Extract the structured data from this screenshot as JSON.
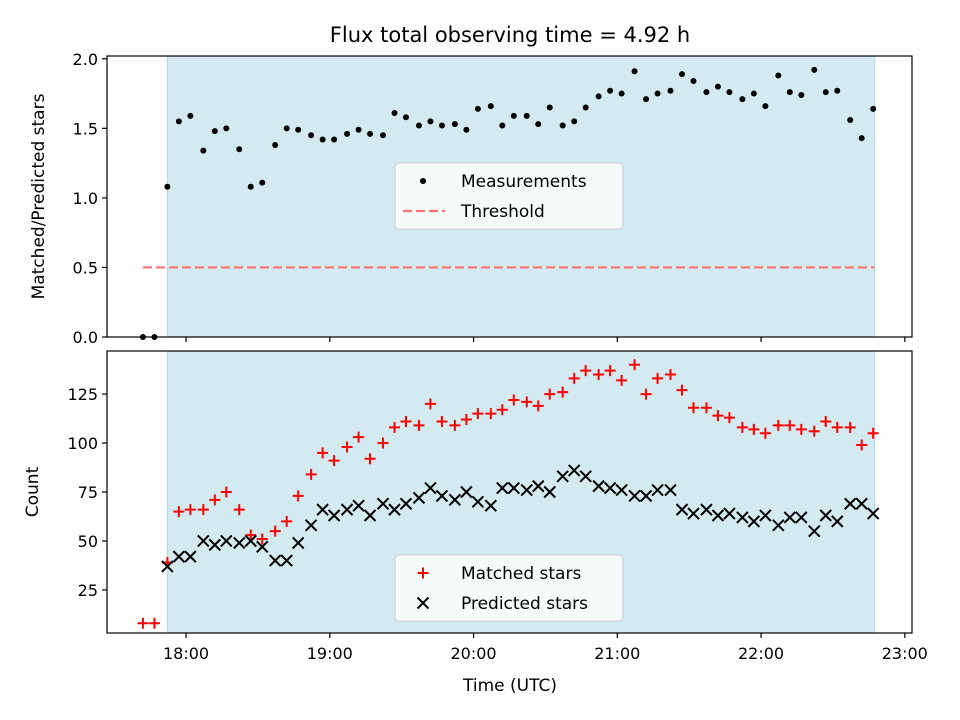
{
  "chart_data": {
    "title": "Flux total observing time = 4.92 h",
    "xlabel": "Time (UTC)",
    "x_tick_labels": [
      "18:00",
      "19:00",
      "20:00",
      "21:00",
      "22:00",
      "23:00"
    ],
    "x_ticks_hours": [
      18,
      19,
      20,
      21,
      22,
      23
    ],
    "xlim_hours": [
      17.45,
      23.05
    ],
    "shade_span_hours": [
      17.87,
      22.79
    ],
    "shade_color": "#d3eaf0",
    "panels": [
      {
        "type": "scatter",
        "ylabel": "Matched/Predicted stars",
        "ylim": [
          0,
          2.02
        ],
        "y_ticks": [
          0.0,
          0.5,
          1.0,
          1.5,
          2.0
        ],
        "y_tick_labels": [
          "0.0",
          "0.5",
          "1.0",
          "1.5",
          "2.0"
        ],
        "legend": {
          "placement": "center",
          "entries": [
            {
              "label": "Measurements",
              "marker": "dot",
              "color": "#000000"
            },
            {
              "label": "Threshold",
              "marker": "dashed-line",
              "color": "#ff7070"
            }
          ]
        },
        "threshold": {
          "value": 0.5,
          "x_range_hours": [
            17.7,
            22.79
          ],
          "color": "#ff7070"
        },
        "series": [
          {
            "marker": "dot",
            "color": "#000000",
            "x_hours": [
              17.7,
              17.78,
              17.87,
              17.95,
              18.03,
              18.12,
              18.2,
              18.28,
              18.37,
              18.45,
              18.53,
              18.62,
              18.7,
              18.78,
              18.87,
              18.95,
              19.03,
              19.12,
              19.2,
              19.28,
              19.37,
              19.45,
              19.53,
              19.62,
              19.7,
              19.78,
              19.87,
              19.95,
              20.03,
              20.12,
              20.2,
              20.28,
              20.37,
              20.45,
              20.53,
              20.62,
              20.7,
              20.78,
              20.87,
              20.95,
              21.03,
              21.12,
              21.2,
              21.28,
              21.37,
              21.45,
              21.53,
              21.62,
              21.7,
              21.78,
              21.87,
              21.95,
              22.03,
              22.12,
              22.2,
              22.28,
              22.37,
              22.45,
              22.53,
              22.62,
              22.7,
              22.78
            ],
            "y": [
              0.0,
              0.0,
              1.08,
              1.55,
              1.59,
              1.34,
              1.48,
              1.5,
              1.35,
              1.08,
              1.11,
              1.38,
              1.5,
              1.49,
              1.45,
              1.42,
              1.42,
              1.46,
              1.49,
              1.46,
              1.45,
              1.61,
              1.58,
              1.52,
              1.55,
              1.52,
              1.53,
              1.49,
              1.64,
              1.66,
              1.52,
              1.59,
              1.59,
              1.53,
              1.65,
              1.52,
              1.55,
              1.65,
              1.73,
              1.77,
              1.75,
              1.91,
              1.71,
              1.75,
              1.77,
              1.89,
              1.84,
              1.76,
              1.8,
              1.76,
              1.71,
              1.75,
              1.66,
              1.88,
              1.76,
              1.74,
              1.92,
              1.76,
              1.77,
              1.56,
              1.43,
              1.64
            ]
          }
        ]
      },
      {
        "type": "scatter",
        "ylabel": "Count",
        "ylim": [
          3,
          147
        ],
        "y_ticks": [
          25,
          50,
          75,
          100,
          125
        ],
        "y_tick_labels": [
          "25",
          "50",
          "75",
          "100",
          "125"
        ],
        "legend": {
          "placement": "lower center",
          "entries": [
            {
              "label": "Matched stars",
              "marker": "plus",
              "color": "#ff0000"
            },
            {
              "label": "Predicted stars",
              "marker": "x",
              "color": "#000000"
            }
          ]
        },
        "series": [
          {
            "name": "Matched stars",
            "marker": "plus",
            "color": "#ff0000",
            "x_hours": [
              17.7,
              17.78,
              17.87,
              17.95,
              18.03,
              18.12,
              18.2,
              18.28,
              18.37,
              18.45,
              18.53,
              18.62,
              18.7,
              18.78,
              18.87,
              18.95,
              19.03,
              19.12,
              19.2,
              19.28,
              19.37,
              19.45,
              19.53,
              19.62,
              19.7,
              19.78,
              19.87,
              19.95,
              20.03,
              20.12,
              20.2,
              20.28,
              20.37,
              20.45,
              20.53,
              20.62,
              20.7,
              20.78,
              20.87,
              20.95,
              21.03,
              21.12,
              21.2,
              21.28,
              21.37,
              21.45,
              21.53,
              21.62,
              21.7,
              21.78,
              21.87,
              21.95,
              22.03,
              22.12,
              22.2,
              22.28,
              22.37,
              22.45,
              22.53,
              22.62,
              22.7,
              22.78
            ],
            "y": [
              8,
              8,
              39,
              65,
              66,
              66,
              71,
              75,
              66,
              53,
              51,
              55,
              60,
              73,
              84,
              95,
              91,
              98,
              103,
              92,
              100,
              108,
              111,
              109,
              120,
              111,
              109,
              112,
              115,
              115,
              117,
              122,
              121,
              119,
              125,
              126,
              133,
              137,
              135,
              137,
              132,
              140,
              125,
              133,
              135,
              127,
              118,
              118,
              114,
              113,
              108,
              107,
              105,
              109,
              109,
              107,
              106,
              111,
              108,
              108,
              99,
              105
            ]
          },
          {
            "name": "Predicted stars",
            "marker": "x",
            "color": "#000000",
            "x_hours": [
              17.87,
              17.95,
              18.03,
              18.12,
              18.2,
              18.28,
              18.37,
              18.45,
              18.53,
              18.62,
              18.7,
              18.78,
              18.87,
              18.95,
              19.03,
              19.12,
              19.2,
              19.28,
              19.37,
              19.45,
              19.53,
              19.62,
              19.7,
              19.78,
              19.87,
              19.95,
              20.03,
              20.12,
              20.2,
              20.28,
              20.37,
              20.45,
              20.53,
              20.62,
              20.7,
              20.78,
              20.87,
              20.95,
              21.03,
              21.12,
              21.2,
              21.28,
              21.37,
              21.45,
              21.53,
              21.62,
              21.7,
              21.78,
              21.87,
              21.95,
              22.03,
              22.12,
              22.2,
              22.28,
              22.37,
              22.45,
              22.53,
              22.62,
              22.7,
              22.78
            ],
            "y": [
              37,
              42,
              42,
              50,
              48,
              50,
              49,
              50,
              47,
              40,
              40,
              49,
              58,
              66,
              63,
              66,
              68,
              63,
              69,
              66,
              69,
              72,
              77,
              73,
              71,
              75,
              70,
              68,
              77,
              77,
              76,
              78,
              75,
              83,
              86,
              83,
              78,
              77,
              76,
              73,
              73,
              76,
              76,
              66,
              64,
              66,
              63,
              64,
              62,
              60,
              63,
              58,
              62,
              62,
              55,
              63,
              60,
              69,
              69,
              64
            ]
          }
        ]
      }
    ]
  }
}
